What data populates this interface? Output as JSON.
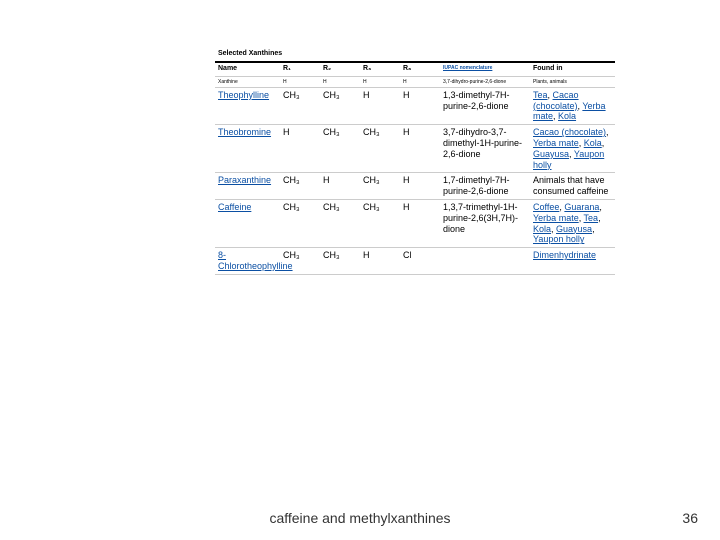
{
  "table": {
    "caption": "Selected Xanthines",
    "headers": [
      "Name",
      "R₁",
      "R₂",
      "R₃",
      "R₈",
      "IUPAC nomenclature",
      "Found in"
    ],
    "rows": [
      {
        "name": "Xanthine",
        "name_link": false,
        "r1": "H",
        "r2": "H",
        "r3": "H",
        "r8": "H",
        "iupac": "3,7-dihydro-purine-2,6-dione",
        "found_in_plain": "Plants, animals",
        "found_in_links": [],
        "size": "tiny"
      },
      {
        "name": "Theophylline",
        "name_link": true,
        "r1": "CH₃",
        "r2": "CH₃",
        "r3": "H",
        "r8": "H",
        "iupac": "1,3-dimethyl-7H-purine-2,6-dione",
        "found_in_plain": "",
        "found_in_links": [
          "Tea",
          "Cacao (chocolate)",
          "Yerba mate",
          "Kola"
        ],
        "size": "big"
      },
      {
        "name": "Theobromine",
        "name_link": true,
        "r1": "H",
        "r2": "CH₃",
        "r3": "CH₃",
        "r8": "H",
        "iupac": "3,7-dihydro-3,7-dimethyl-1H-purine-2,6-dione",
        "found_in_plain": "",
        "found_in_links": [
          "Cacao (chocolate)",
          "Yerba mate",
          "Kola",
          "Guayusa",
          "Yaupon holly"
        ],
        "size": "big"
      },
      {
        "name": "Paraxanthine",
        "name_link": true,
        "r1": "CH₃",
        "r2": "H",
        "r3": "CH₃",
        "r8": "H",
        "iupac": "1,7-dimethyl-7H-purine-2,6-dione",
        "found_in_plain": "Animals that have consumed caffeine",
        "found_in_links": [],
        "size": "big"
      },
      {
        "name": "Caffeine",
        "name_link": true,
        "r1": "CH₃",
        "r2": "CH₃",
        "r3": "CH₃",
        "r8": "H",
        "iupac": "1,3,7-trimethyl-1H-purine-2,6(3H,7H)-dione",
        "found_in_plain": "",
        "found_in_links": [
          "Coffee",
          "Guarana",
          "Yerba mate",
          "Tea",
          "Kola",
          "Guayusa",
          "Yaupon holly"
        ],
        "size": "big"
      },
      {
        "name": "8-Chlorotheophylline",
        "name_link": true,
        "r1": "CH₃",
        "r2": "CH₃",
        "r3": "H",
        "r8": "Cl",
        "iupac": "",
        "found_in_plain": "",
        "found_in_links": [
          "Dimenhydrinate"
        ],
        "size": "big"
      }
    ]
  },
  "subtitle": "caffeine and methylxanthines",
  "page_number": "36",
  "colors": {
    "link": "#0b4fa3",
    "border": "#cccccc",
    "caption_border": "#000000"
  }
}
